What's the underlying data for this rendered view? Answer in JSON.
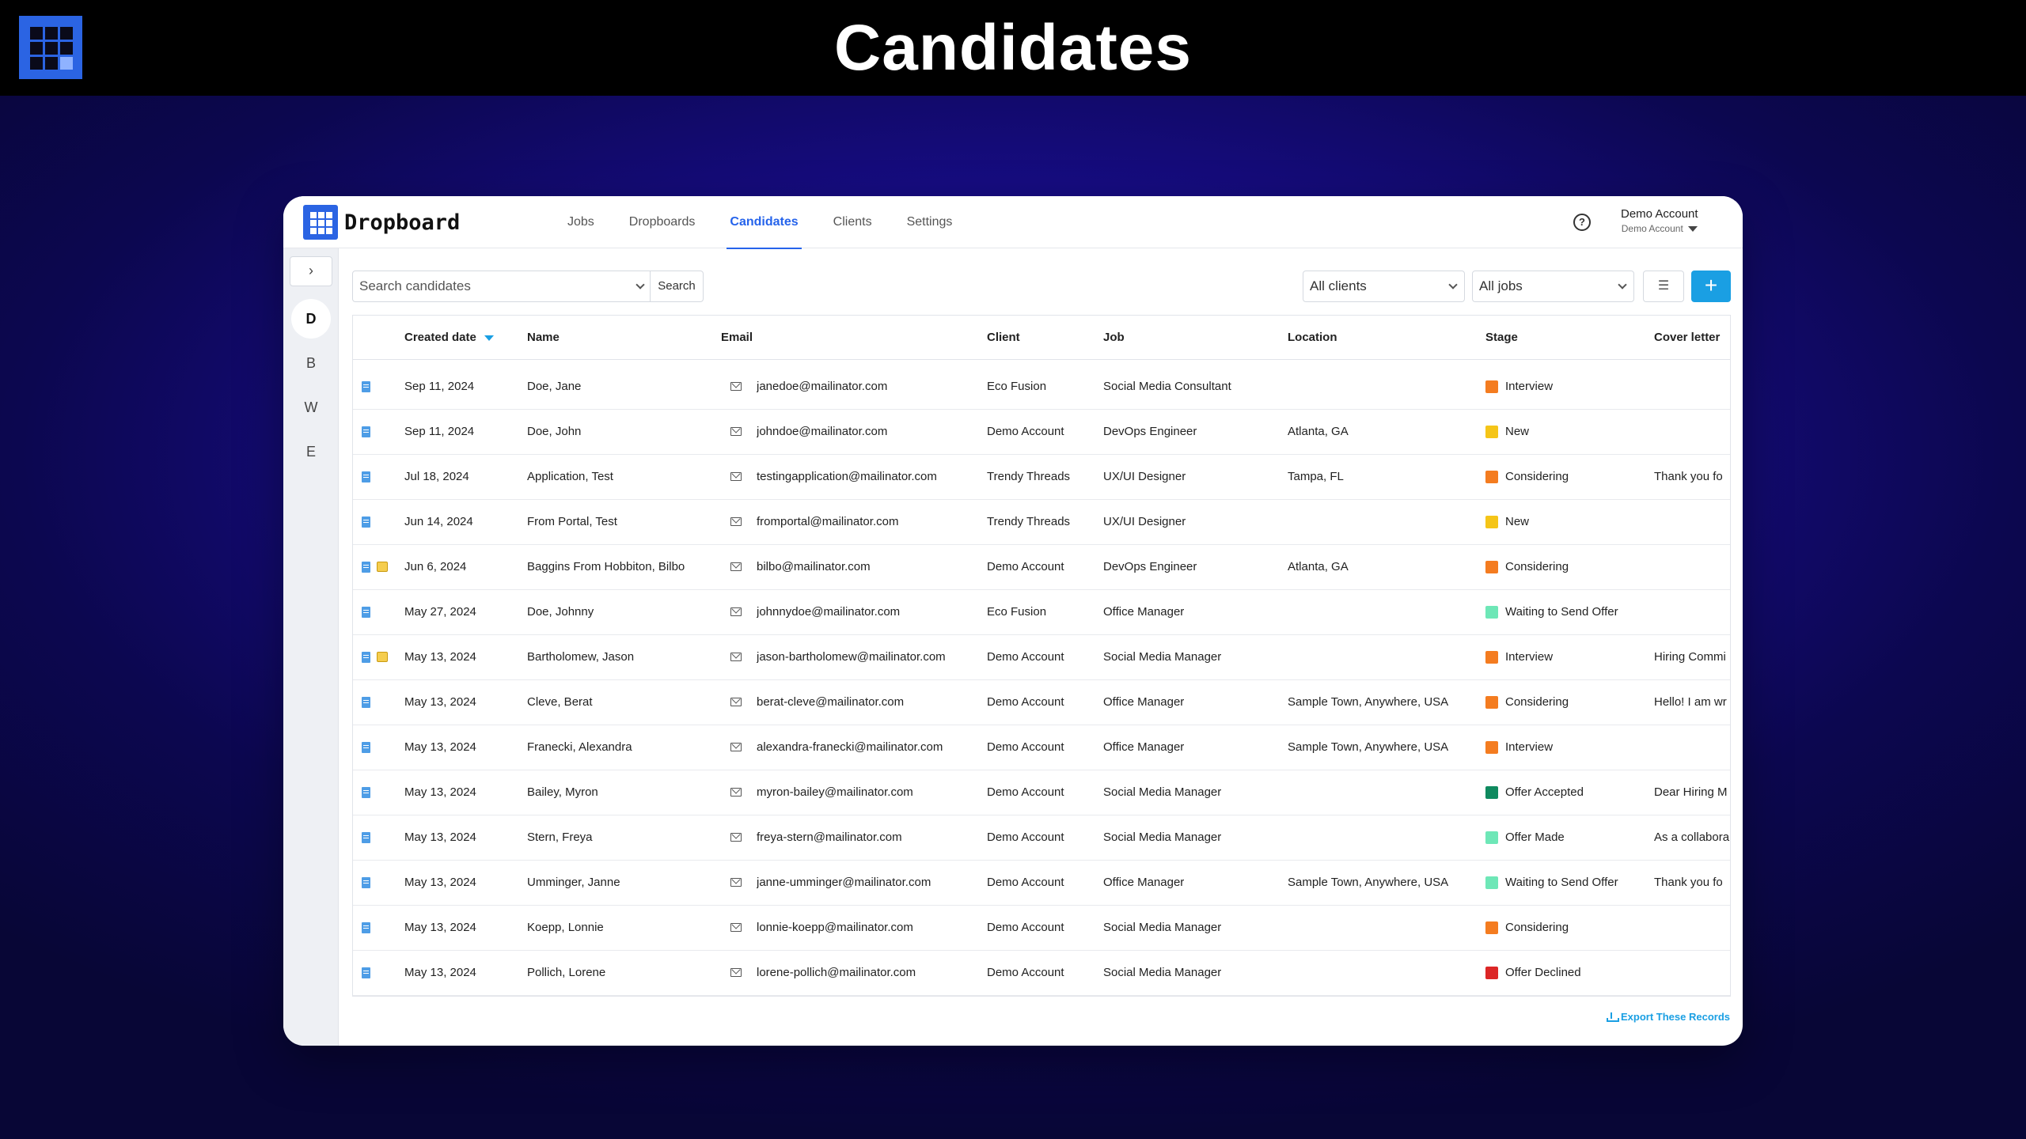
{
  "banner": {
    "title": "Candidates"
  },
  "brand": {
    "name": "Dropboard"
  },
  "nav": {
    "tabs": [
      {
        "label": "Jobs"
      },
      {
        "label": "Dropboards"
      },
      {
        "label": "Candidates",
        "active": true
      },
      {
        "label": "Clients"
      },
      {
        "label": "Settings"
      }
    ]
  },
  "account": {
    "name": "Demo Account",
    "sub": "Demo Account"
  },
  "help_icon": "question-circle",
  "sidebar": {
    "toggle": "›",
    "letters": [
      {
        "label": "D",
        "active": true
      },
      {
        "label": "B"
      },
      {
        "label": "W"
      },
      {
        "label": "E"
      }
    ]
  },
  "toolbar": {
    "search_placeholder": "Search candidates",
    "search_button": "Search",
    "clients_filter": "All clients",
    "jobs_filter": "All jobs",
    "add_label": "+"
  },
  "table": {
    "columns": {
      "created": "Created date",
      "name": "Name",
      "email": "Email",
      "client": "Client",
      "job": "Job",
      "location": "Location",
      "stage": "Stage",
      "cover": "Cover letter"
    },
    "rows": [
      {
        "date": "Sep 11, 2024",
        "name": "Doe, Jane",
        "email": "janedoe@mailinator.com",
        "client": "Eco Fusion",
        "job": "Social Media Consultant",
        "location": "",
        "stage": "Interview",
        "stage_color": "#f47c20",
        "cover": "",
        "note": false
      },
      {
        "date": "Sep 11, 2024",
        "name": "Doe, John",
        "email": "johndoe@mailinator.com",
        "client": "Demo Account",
        "job": "DevOps Engineer",
        "location": "Atlanta, GA",
        "stage": "New",
        "stage_color": "#f5c518",
        "cover": "",
        "note": false
      },
      {
        "date": "Jul 18, 2024",
        "name": "Application, Test",
        "email": "testingapplication@mailinator.com",
        "client": "Trendy Threads",
        "job": "UX/UI Designer",
        "location": "Tampa, FL",
        "stage": "Considering",
        "stage_color": "#f47c20",
        "cover": "Thank you fo",
        "note": false
      },
      {
        "date": "Jun 14, 2024",
        "name": "From Portal, Test",
        "email": "fromportal@mailinator.com",
        "client": "Trendy Threads",
        "job": "UX/UI Designer",
        "location": "",
        "stage": "New",
        "stage_color": "#f5c518",
        "cover": "",
        "note": false
      },
      {
        "date": "Jun 6, 2024",
        "name": "Baggins From Hobbiton, Bilbo",
        "email": "bilbo@mailinator.com",
        "client": "Demo Account",
        "job": "DevOps Engineer",
        "location": "Atlanta, GA",
        "stage": "Considering",
        "stage_color": "#f47c20",
        "cover": "",
        "note": true
      },
      {
        "date": "May 27, 2024",
        "name": "Doe, Johnny",
        "email": "johnnydoe@mailinator.com",
        "client": "Eco Fusion",
        "job": "Office Manager",
        "location": "",
        "stage": "Waiting to Send Offer",
        "stage_color": "#6ee7b7",
        "cover": "",
        "note": false
      },
      {
        "date": "May 13, 2024",
        "name": "Bartholomew, Jason",
        "email": "jason-bartholomew@mailinator.com",
        "client": "Demo Account",
        "job": "Social Media Manager",
        "location": "",
        "stage": "Interview",
        "stage_color": "#f47c20",
        "cover": "Hiring Commi",
        "note": true
      },
      {
        "date": "May 13, 2024",
        "name": "Cleve, Berat",
        "email": "berat-cleve@mailinator.com",
        "client": "Demo Account",
        "job": "Office Manager",
        "location": "Sample Town, Anywhere, USA",
        "stage": "Considering",
        "stage_color": "#f47c20",
        "cover": "Hello! I am wr",
        "note": false
      },
      {
        "date": "May 13, 2024",
        "name": "Franecki, Alexandra",
        "email": "alexandra-franecki@mailinator.com",
        "client": "Demo Account",
        "job": "Office Manager",
        "location": "Sample Town, Anywhere, USA",
        "stage": "Interview",
        "stage_color": "#f47c20",
        "cover": "",
        "note": false
      },
      {
        "date": "May 13, 2024",
        "name": "Bailey, Myron",
        "email": "myron-bailey@mailinator.com",
        "client": "Demo Account",
        "job": "Social Media Manager",
        "location": "",
        "stage": "Offer Accepted",
        "stage_color": "#0f8a5f",
        "cover": "Dear Hiring M",
        "note": false
      },
      {
        "date": "May 13, 2024",
        "name": "Stern, Freya",
        "email": "freya-stern@mailinator.com",
        "client": "Demo Account",
        "job": "Social Media Manager",
        "location": "",
        "stage": "Offer Made",
        "stage_color": "#6ee7b7",
        "cover": "As a collabora",
        "note": false
      },
      {
        "date": "May 13, 2024",
        "name": "Umminger, Janne",
        "email": "janne-umminger@mailinator.com",
        "client": "Demo Account",
        "job": "Office Manager",
        "location": "Sample Town, Anywhere, USA",
        "stage": "Waiting to Send Offer",
        "stage_color": "#6ee7b7",
        "cover": "Thank you fo",
        "note": false
      },
      {
        "date": "May 13, 2024",
        "name": "Koepp, Lonnie",
        "email": "lonnie-koepp@mailinator.com",
        "client": "Demo Account",
        "job": "Social Media Manager",
        "location": "",
        "stage": "Considering",
        "stage_color": "#f47c20",
        "cover": "",
        "note": false
      },
      {
        "date": "May 13, 2024",
        "name": "Pollich, Lorene",
        "email": "lorene-pollich@mailinator.com",
        "client": "Demo Account",
        "job": "Social Media Manager",
        "location": "",
        "stage": "Offer Declined",
        "stage_color": "#dc2626",
        "cover": "",
        "note": false
      }
    ]
  },
  "footer": {
    "export_label": "Export These Records"
  }
}
